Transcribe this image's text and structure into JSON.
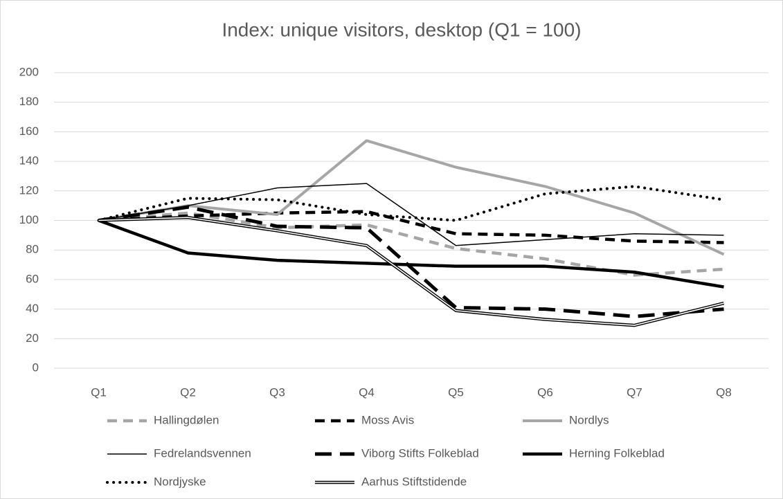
{
  "chart_data": {
    "type": "line",
    "title": "Index: unique visitors, desktop (Q1 = 100)",
    "categories": [
      "Q1",
      "Q2",
      "Q3",
      "Q4",
      "Q5",
      "Q6",
      "Q7",
      "Q8"
    ],
    "ylim": [
      0,
      200
    ],
    "yticks": [
      0,
      20,
      40,
      60,
      80,
      100,
      120,
      140,
      160,
      180,
      200
    ],
    "grid": true,
    "legend": "bottom",
    "series": [
      {
        "name": "Hallingdølen",
        "color": "#a6a6a6",
        "style": "dashed",
        "values": [
          100,
          105,
          95,
          97,
          81,
          74,
          63,
          67
        ]
      },
      {
        "name": "Moss Avis",
        "color": "#000000",
        "style": "dashed",
        "values": [
          100,
          103,
          105,
          106,
          91,
          90,
          86,
          85
        ]
      },
      {
        "name": "Nordlys",
        "color": "#a6a6a6",
        "style": "solid",
        "values": [
          100,
          110,
          104,
          154,
          136,
          123,
          105,
          77
        ]
      },
      {
        "name": "Fedrelandsvennen",
        "color": "#000000",
        "style": "thin",
        "values": [
          100,
          110,
          122,
          125,
          83,
          87,
          91,
          90
        ]
      },
      {
        "name": "Viborg Stifts Folkeblad",
        "color": "#000000",
        "style": "long-dashed",
        "values": [
          100,
          109,
          96,
          95,
          41,
          40,
          35,
          40
        ]
      },
      {
        "name": "Herning Folkeblad",
        "color": "#000000",
        "style": "thick",
        "values": [
          100,
          78,
          73,
          71,
          69,
          69,
          65,
          55
        ]
      },
      {
        "name": "Nordjyske",
        "color": "#000000",
        "style": "dotted",
        "values": [
          100,
          115,
          114,
          104,
          100,
          118,
          123,
          114
        ]
      },
      {
        "name": "Aarhus Stiftstidende",
        "color": "#000000",
        "style": "double",
        "values": [
          100,
          102,
          93,
          83,
          39,
          33,
          29,
          44
        ]
      }
    ]
  }
}
